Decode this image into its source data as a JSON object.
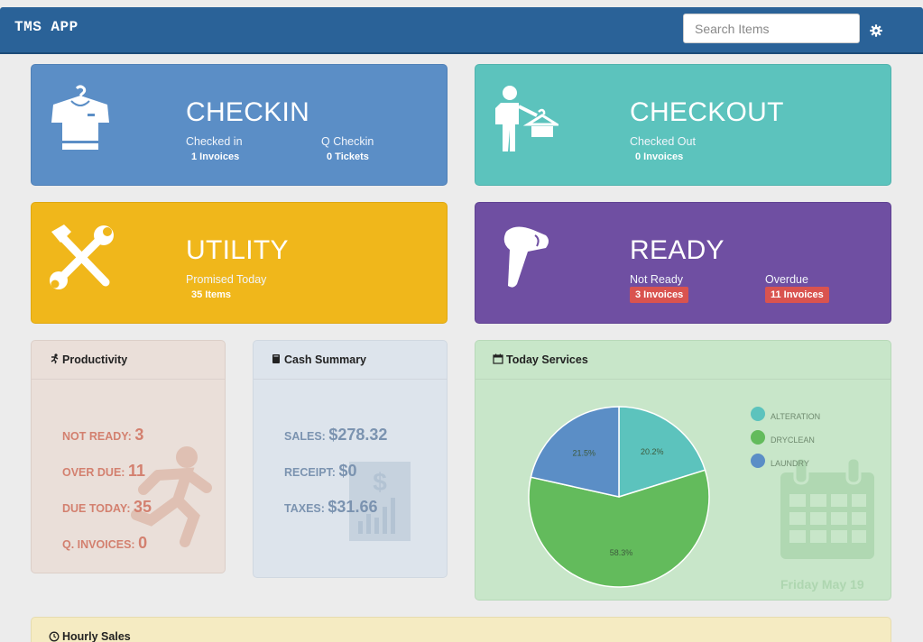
{
  "header": {
    "brand": "TMS APP",
    "search_placeholder": "Search Items"
  },
  "tiles": {
    "checkin": {
      "title": "CHECKIN",
      "stats": [
        {
          "label": "Checked in",
          "value": "1 Invoices"
        },
        {
          "label": "Q Checkin",
          "value": "0 Tickets"
        }
      ]
    },
    "checkout": {
      "title": "CHECKOUT",
      "stats": [
        {
          "label": "Checked Out",
          "value": "0 Invoices"
        }
      ]
    },
    "utility": {
      "title": "UTILITY",
      "stats": [
        {
          "label": "Promised Today",
          "value": "35 Items"
        }
      ]
    },
    "ready": {
      "title": "READY",
      "stats": [
        {
          "label": "Not Ready",
          "value": "3 Invoices"
        },
        {
          "label": "Overdue",
          "value": "11 Invoices"
        }
      ]
    }
  },
  "productivity": {
    "title": "Productivity",
    "items": [
      {
        "label": "NOT READY:",
        "value": "3"
      },
      {
        "label": "OVER DUE:",
        "value": "11"
      },
      {
        "label": "DUE TODAY:",
        "value": "35"
      },
      {
        "label": "Q. INVOICES:",
        "value": "0"
      }
    ]
  },
  "cash": {
    "title": "Cash Summary",
    "items": [
      {
        "label": "SALES:",
        "value": "$278.32"
      },
      {
        "label": "RECEIPT:",
        "value": "$0"
      },
      {
        "label": "TAXES:",
        "value": "$31.66"
      }
    ]
  },
  "today": {
    "title": "Today Services",
    "date": "Friday May 19"
  },
  "hourly": {
    "title": "Hourly Sales"
  },
  "colors": {
    "header": "#2a6298",
    "checkin": "#5b8ec6",
    "checkout": "#5cc3bd",
    "utility": "#f0b71b",
    "ready": "#6f4fa2",
    "badge": "#d9534f"
  },
  "chart_data": {
    "type": "pie",
    "categories": [
      "ALTERATION",
      "DRYCLEAN",
      "LAUNDRY"
    ],
    "values": [
      20.2,
      58.3,
      21.5
    ],
    "colors": [
      "#5cc3bd",
      "#63bb5c",
      "#5b8ec6"
    ],
    "labels": [
      "20.2%",
      "58.3%",
      "21.5%"
    ],
    "legend": "right"
  }
}
